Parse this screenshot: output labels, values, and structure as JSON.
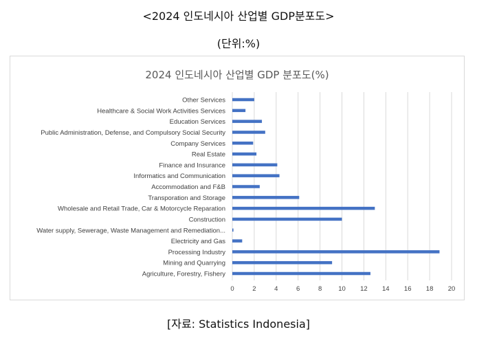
{
  "page": {
    "title": "<2024 인도네시아 산업별 GDP분포도>",
    "unit": "(단위:%)",
    "source": "[자료: Statistics Indonesia]"
  },
  "chart_data": {
    "type": "bar",
    "orientation": "horizontal",
    "title": "2024 인도네시아 산업별 GDP 분포도(%)",
    "xlabel": "",
    "ylabel": "",
    "xlim": [
      0,
      20
    ],
    "xticks": [
      0,
      2,
      4,
      6,
      8,
      10,
      12,
      14,
      16,
      18,
      20
    ],
    "grid": true,
    "legend": "none",
    "bar_color": "#4472C4",
    "categories": [
      "Other Services",
      "Healthcare & Social Work Activities Services",
      "Education Services",
      "Public Administration, Defense, and Compulsory Social Security",
      "Company Services",
      "Real Estate",
      "Finance and Insurance",
      "Informatics and Communication",
      "Accommodation and F&B",
      "Transporation and Storage",
      "Wholesale and Retail Trade, Car & Motorcycle Reparation",
      "Construction",
      "Water supply, Sewerage, Waste Management and Remediation...",
      "Electricity and Gas",
      "Processing Industry",
      "Mining and Quarrying",
      "Agriculture, Forestry, Fishery"
    ],
    "values": [
      2.0,
      1.2,
      2.7,
      3.0,
      1.9,
      2.2,
      4.1,
      4.3,
      2.5,
      6.1,
      13.0,
      10.0,
      0.1,
      0.9,
      18.9,
      9.1,
      12.6
    ]
  }
}
